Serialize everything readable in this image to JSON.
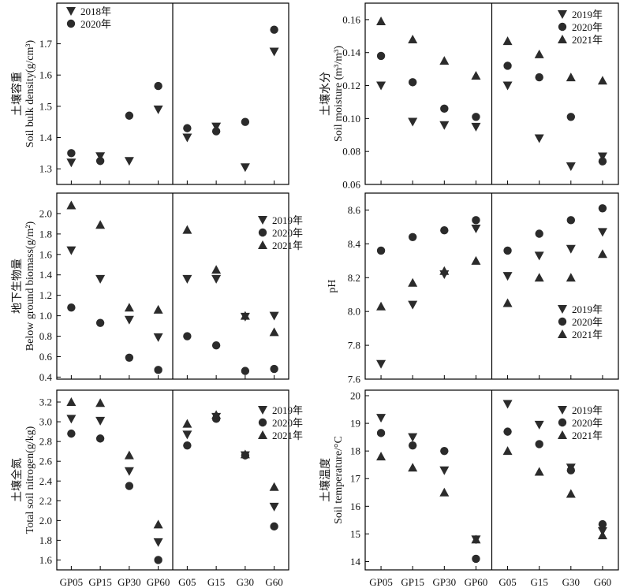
{
  "figure": {
    "x_categories": [
      "GP05",
      "GP15",
      "GP30",
      "GP60",
      "G05",
      "G15",
      "G30",
      "G60"
    ],
    "colors": {
      "marker": "#2b2b2b",
      "axis": "#000000"
    }
  },
  "chart_data": [
    {
      "type": "scatter",
      "ylabel_cn": "土壤容重",
      "ylabel_en": "Soil bulk density(g/cm³)",
      "ylim": [
        1.25,
        1.83
      ],
      "yticks": [
        "1.3",
        "1.4",
        "1.5",
        "1.6",
        "1.7"
      ],
      "legend": "top-left",
      "categories": [
        "GP05",
        "GP15",
        "GP30",
        "GP60",
        "G05",
        "G15",
        "G30",
        "G60"
      ],
      "series": [
        {
          "name": "2018年",
          "marker": "triangle-down",
          "values": [
            1.32,
            1.34,
            1.325,
            1.49,
            1.4,
            1.435,
            1.305,
            1.675
          ]
        },
        {
          "name": "2020年",
          "marker": "circle",
          "values": [
            1.35,
            1.325,
            1.47,
            1.565,
            1.43,
            1.42,
            1.45,
            1.745
          ]
        }
      ]
    },
    {
      "type": "scatter",
      "ylabel_cn": "土壤水分",
      "ylabel_en": "Soil moisture (m³/m³)",
      "ylim": [
        0.06,
        0.17
      ],
      "yticks": [
        "0.06",
        "0.08",
        "0.10",
        "0.12",
        "0.14",
        "0.16"
      ],
      "legend": "top-right",
      "categories": [
        "GP05",
        "GP15",
        "GP30",
        "GP60",
        "G05",
        "G15",
        "G30",
        "G60"
      ],
      "series": [
        {
          "name": "2019年",
          "marker": "triangle-down",
          "values": [
            0.12,
            0.098,
            0.096,
            0.095,
            0.12,
            0.088,
            0.071,
            0.077
          ]
        },
        {
          "name": "2020年",
          "marker": "circle",
          "values": [
            0.138,
            0.122,
            0.106,
            0.101,
            0.132,
            0.125,
            0.101,
            0.074
          ]
        },
        {
          "name": "2021年",
          "marker": "triangle-up",
          "values": [
            0.159,
            0.148,
            0.135,
            0.126,
            0.147,
            0.139,
            0.125,
            0.123
          ]
        }
      ]
    },
    {
      "type": "scatter",
      "ylabel_cn": "地下生物量",
      "ylabel_en": "Below ground biomass(g/m²)",
      "ylim": [
        0.38,
        2.2
      ],
      "yticks": [
        "0.4",
        "0.6",
        "0.8",
        "1.0",
        "1.2",
        "1.4",
        "1.6",
        "1.8",
        "2.0"
      ],
      "legend": "top-right",
      "categories": [
        "GP05",
        "GP15",
        "GP30",
        "GP60",
        "G05",
        "G15",
        "G30",
        "G60"
      ],
      "series": [
        {
          "name": "2019年",
          "marker": "triangle-down",
          "values": [
            1.64,
            1.36,
            0.96,
            0.79,
            1.36,
            1.36,
            0.99,
            1.0
          ]
        },
        {
          "name": "2020年",
          "marker": "circle",
          "values": [
            1.08,
            0.93,
            0.59,
            0.47,
            0.8,
            0.71,
            0.46,
            0.48
          ]
        },
        {
          "name": "2021年",
          "marker": "triangle-up",
          "values": [
            2.08,
            1.89,
            1.08,
            1.06,
            1.84,
            1.45,
            1.0,
            0.84
          ]
        }
      ]
    },
    {
      "type": "scatter",
      "ylabel_cn": "",
      "ylabel_en": "pH",
      "ylim": [
        7.6,
        8.7
      ],
      "yticks": [
        "7.6",
        "7.8",
        "8.0",
        "8.2",
        "8.4",
        "8.6"
      ],
      "legend": "right",
      "categories": [
        "GP05",
        "GP15",
        "GP30",
        "GP60",
        "G05",
        "G15",
        "G30",
        "G60"
      ],
      "series": [
        {
          "name": "2019年",
          "marker": "triangle-down",
          "values": [
            7.69,
            8.04,
            8.22,
            8.49,
            8.21,
            8.33,
            8.37,
            8.47
          ]
        },
        {
          "name": "2020年",
          "marker": "circle",
          "values": [
            8.36,
            8.44,
            8.48,
            8.54,
            8.36,
            8.46,
            8.54,
            8.61
          ]
        },
        {
          "name": "2021年",
          "marker": "triangle-up",
          "values": [
            8.03,
            8.17,
            8.24,
            8.3,
            8.05,
            8.2,
            8.2,
            8.34
          ]
        }
      ]
    },
    {
      "type": "scatter",
      "ylabel_cn": "土壤全氮",
      "ylabel_en": "Total soil nitrogen(g/kg)",
      "ylim": [
        1.5,
        3.32
      ],
      "yticks": [
        "1.6",
        "1.8",
        "2.0",
        "2.2",
        "2.4",
        "2.6",
        "2.8",
        "3.0",
        "3.2"
      ],
      "legend": "top-right",
      "categories": [
        "GP05",
        "GP15",
        "GP30",
        "GP60",
        "G05",
        "G15",
        "G30",
        "G60"
      ],
      "series": [
        {
          "name": "2019年",
          "marker": "triangle-down",
          "values": [
            3.03,
            3.01,
            2.5,
            1.78,
            2.87,
            3.05,
            2.66,
            2.14
          ]
        },
        {
          "name": "2020年",
          "marker": "circle",
          "values": [
            2.88,
            2.83,
            2.35,
            1.6,
            2.76,
            3.03,
            2.66,
            1.94
          ]
        },
        {
          "name": "2021年",
          "marker": "triangle-up",
          "values": [
            3.2,
            3.19,
            2.66,
            1.96,
            2.98,
            3.07,
            2.67,
            2.34
          ]
        }
      ]
    },
    {
      "type": "scatter",
      "ylabel_cn": "土壤温度",
      "ylabel_en": "Soil temperature/°C",
      "ylim": [
        13.7,
        20.2
      ],
      "yticks": [
        "14",
        "15",
        "16",
        "17",
        "18",
        "19",
        "20"
      ],
      "legend": "top-right",
      "categories": [
        "GP05",
        "GP15",
        "GP30",
        "GP60",
        "G05",
        "G15",
        "G30",
        "G60"
      ],
      "series": [
        {
          "name": "2019年",
          "marker": "triangle-down",
          "values": [
            19.2,
            18.5,
            17.3,
            14.8,
            19.7,
            18.95,
            17.4,
            15.1
          ]
        },
        {
          "name": "2020年",
          "marker": "circle",
          "values": [
            18.65,
            18.2,
            18.0,
            14.1,
            18.7,
            18.25,
            17.3,
            15.35
          ]
        },
        {
          "name": "2021年",
          "marker": "triangle-up",
          "values": [
            17.8,
            17.4,
            16.5,
            14.8,
            18.0,
            17.25,
            16.45,
            14.95
          ]
        }
      ]
    }
  ]
}
